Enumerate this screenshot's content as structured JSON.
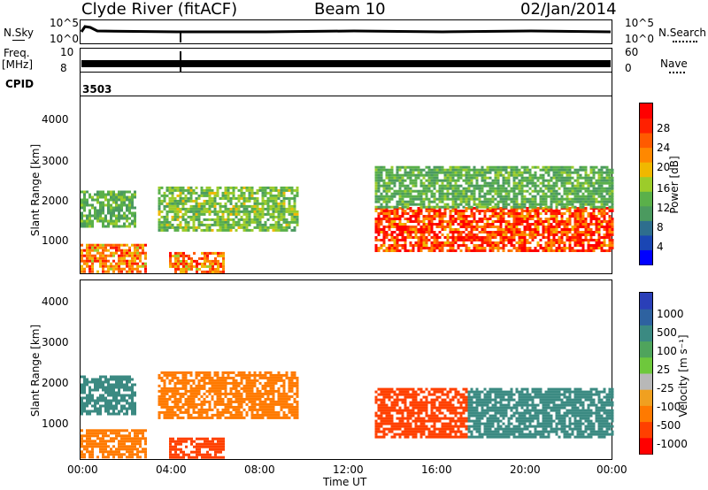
{
  "header": {
    "station": "Clyde River (fitACF)",
    "beam": "Beam 10",
    "date": "02/Jan/2014"
  },
  "top_panels": {
    "nsky_label": "N.Sky",
    "nsky_ticks": [
      "10^5",
      "10^0"
    ],
    "nsearch_label": "N.Search",
    "nsearch_ticks": [
      "10^5",
      "10^0"
    ],
    "freq_label": "Freq.",
    "freq_unit": "[MHz]",
    "freq_ticks": [
      "10",
      "8"
    ],
    "nave_label": "Nave",
    "nave_ticks": [
      "60",
      "0"
    ],
    "cpid_label": "CPID",
    "cpid_value": "3503"
  },
  "x_axis": {
    "label": "Time UT",
    "ticks": [
      "00:00",
      "04:00",
      "08:00",
      "12:00",
      "16:00",
      "20:00",
      "00:00"
    ]
  },
  "y_axis": {
    "label": "Slant Range [km]",
    "ticks": [
      "4000",
      "3000",
      "2000",
      "1000"
    ]
  },
  "power_colorbar": {
    "label": "Power [dB]",
    "ticks": [
      "28",
      "24",
      "20",
      "16",
      "12",
      "8",
      "4"
    ],
    "colors": [
      "#0000ff",
      "#1a46b4",
      "#2e6e8e",
      "#4b9a5f",
      "#5ab04a",
      "#9ccc2a",
      "#f0b800",
      "#ff8800",
      "#ff5a00",
      "#ff2000",
      "#ff0000"
    ]
  },
  "velocity_colorbar": {
    "label": "Velocity [m s⁻¹]",
    "ticks": [
      "1000",
      "500",
      "100",
      "25",
      "-25",
      "-100",
      "-500",
      "-1000"
    ],
    "colors": [
      "#2a3fb8",
      "#2e62a0",
      "#3b8a82",
      "#4fa45c",
      "#6ec83c",
      "#b8b8b8",
      "#f0a020",
      "#ff7a00",
      "#ff4000",
      "#ff0000"
    ]
  },
  "chart_data": [
    {
      "type": "heatmap",
      "title": "Power [dB]",
      "xlabel": "Time UT",
      "ylabel": "Slant Range [km]",
      "xlim": [
        "00:00",
        "24:00"
      ],
      "ylim": [
        180,
        4500
      ],
      "regions": [
        {
          "t0": 0.0,
          "t1": 3.0,
          "r0": 200,
          "r1": 900,
          "value": 24
        },
        {
          "t0": 0.0,
          "t1": 2.5,
          "r0": 1300,
          "r1": 2200,
          "value": 12
        },
        {
          "t0": 4.0,
          "t1": 6.5,
          "r0": 200,
          "r1": 700,
          "value": 24
        },
        {
          "t0": 3.5,
          "t1": 9.8,
          "r0": 1200,
          "r1": 2300,
          "value": 14
        },
        {
          "t0": 13.3,
          "t1": 24.0,
          "r0": 700,
          "r1": 1800,
          "value": 28
        },
        {
          "t0": 13.3,
          "t1": 24.0,
          "r0": 1800,
          "r1": 2800,
          "value": 12
        }
      ]
    },
    {
      "type": "heatmap",
      "title": "Velocity [m s⁻¹]",
      "xlabel": "Time UT",
      "ylabel": "Slant Range [km]",
      "xlim": [
        "00:00",
        "24:00"
      ],
      "ylim": [
        180,
        4500
      ],
      "regions": [
        {
          "t0": 0.0,
          "t1": 3.0,
          "r0": 200,
          "r1": 900,
          "value": -100
        },
        {
          "t0": 0.0,
          "t1": 2.5,
          "r0": 1300,
          "r1": 2200,
          "value": 100
        },
        {
          "t0": 4.0,
          "t1": 6.5,
          "r0": 200,
          "r1": 700,
          "value": -500
        },
        {
          "t0": 3.5,
          "t1": 9.8,
          "r0": 1200,
          "r1": 2300,
          "value": -100
        },
        {
          "t0": 13.3,
          "t1": 17.5,
          "r0": 700,
          "r1": 1900,
          "value": -500
        },
        {
          "t0": 17.5,
          "t1": 24.0,
          "r0": 700,
          "r1": 1900,
          "value": 100
        }
      ]
    }
  ]
}
